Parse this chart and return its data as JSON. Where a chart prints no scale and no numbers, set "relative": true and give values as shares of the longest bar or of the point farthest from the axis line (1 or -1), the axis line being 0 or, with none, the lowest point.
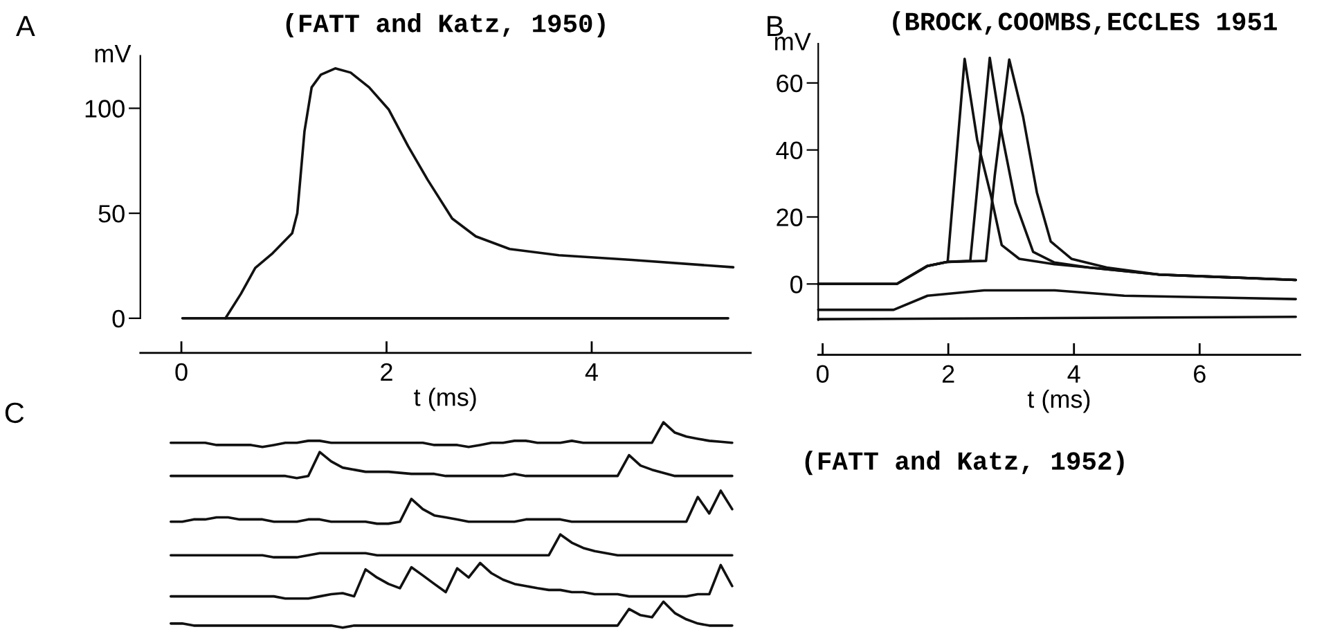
{
  "chart_data": [
    {
      "type": "line",
      "title": "(FATT and Katz, 1950)",
      "ylabel": "mV",
      "xlabel": "t (ms)",
      "annotations": [
        "A"
      ],
      "xlim": [
        -0.4,
        5.55
      ],
      "ylim": [
        0,
        125
      ],
      "xticks": [
        0,
        2,
        4
      ],
      "yticks": [
        0,
        50,
        100
      ],
      "legend": false,
      "marker": "none",
      "line_style": "solid",
      "series": [
        {
          "color": "#111111",
          "x": [
            0.01,
            5.33
          ],
          "values": [
            0,
            0
          ]
        },
        {
          "color": "#111111",
          "x": [
            0.43,
            0.58,
            0.72,
            0.89,
            1.08,
            1.13,
            1.2,
            1.27,
            1.36,
            1.5,
            1.65,
            1.83,
            2.02,
            2.21,
            2.4,
            2.64,
            2.87,
            3.2,
            3.68,
            4.39,
            5.38
          ],
          "values": [
            0,
            11.6,
            24,
            31,
            40.5,
            50,
            89,
            110,
            116,
            119,
            117,
            110,
            99.5,
            82,
            66,
            47.5,
            39,
            33,
            30,
            27.8,
            24.3
          ]
        }
      ]
    },
    {
      "type": "line",
      "title": "(BROCK,COOMBS,ECCLES 1951",
      "ylabel": "mV",
      "xlabel": "t (ms)",
      "annotations": [
        "B"
      ],
      "xlim": [
        -0.07,
        7.6
      ],
      "ylim": [
        -10.8,
        71.7
      ],
      "xticks": [
        0,
        2,
        4,
        6
      ],
      "yticks": [
        0,
        20,
        40,
        60
      ],
      "legend": false,
      "marker": "none",
      "line_style": "solid",
      "series": [
        {
          "color": "#111111",
          "x": [
            -0.07,
            1.18,
            1.67,
            1.99,
            2.26,
            2.46,
            2.68,
            2.85,
            3.13,
            3.69,
            4.24,
            5.36,
            7.53
          ],
          "values": [
            0,
            0,
            5.4,
            6.6,
            67.2,
            43,
            26.3,
            11.6,
            7.5,
            5.9,
            4.9,
            2.8,
            1.2
          ]
        },
        {
          "color": "#111111",
          "x": [
            -0.07,
            1.18,
            1.67,
            1.99,
            2.35,
            2.66,
            2.85,
            3.07,
            3.35,
            3.69,
            4.24,
            5.36,
            7.53
          ],
          "values": [
            0,
            0,
            5.4,
            6.6,
            6.9,
            67.5,
            45,
            24.2,
            9.6,
            6.4,
            4.9,
            2.8,
            1.2
          ]
        },
        {
          "color": "#111111",
          "x": [
            -0.07,
            1.18,
            1.67,
            1.99,
            2.6,
            2.74,
            2.97,
            3.19,
            3.41,
            3.63,
            3.96,
            4.52,
            5.36,
            7.53
          ],
          "values": [
            0,
            0,
            5.4,
            6.6,
            6.9,
            32.5,
            67,
            50,
            27.3,
            12.7,
            7.5,
            4.9,
            2.8,
            1.2
          ]
        },
        {
          "color": "#111111",
          "x": [
            -0.07,
            1.13,
            1.67,
            2.57,
            3.69,
            4.8,
            7.53
          ],
          "values": [
            -7.7,
            -7.7,
            -3.5,
            -1.9,
            -1.9,
            -3.5,
            -4.5
          ]
        },
        {
          "color": "#111111",
          "x": [
            -0.07,
            7.53
          ],
          "values": [
            -10.5,
            -9.8
          ]
        }
      ]
    },
    {
      "type": "line",
      "relative": true,
      "annotations": [
        "C",
        "(FATT and Katz, 1952)"
      ],
      "legend": false,
      "marker": "none",
      "line_style": "solid",
      "tick_labels": false,
      "categories": [
        null,
        null,
        null,
        null,
        null,
        null,
        null,
        null,
        null,
        null,
        null,
        null,
        null,
        null,
        null,
        null,
        null,
        null,
        null,
        null,
        null,
        null,
        null,
        null,
        null,
        null,
        null,
        null,
        null,
        null,
        null,
        null,
        null,
        null,
        null,
        null,
        null,
        null,
        null,
        null,
        null,
        null,
        null,
        null,
        null,
        null,
        null,
        null,
        null,
        null
      ],
      "series": [
        {
          "color": "#111111",
          "values": [
            0.17,
            0.17,
            0.17,
            0.17,
            0.08,
            0.08,
            0.08,
            0.08,
            0,
            0.08,
            0.17,
            0.17,
            0.25,
            0.25,
            0.17,
            0.17,
            0.17,
            0.17,
            0.17,
            0.17,
            0.17,
            0.17,
            0.17,
            0.08,
            0.08,
            0.08,
            0,
            0.08,
            0.17,
            0.17,
            0.25,
            0.25,
            0.17,
            0.17,
            0.17,
            0.25,
            0.17,
            0.17,
            0.17,
            0.17,
            0.17,
            0.17,
            0.17,
            1,
            0.58,
            0.42,
            0.33,
            0.25,
            0.21,
            0.17
          ]
        }
      ]
    },
    {
      "type": "line",
      "relative": true,
      "legend": false,
      "marker": "none",
      "line_style": "solid",
      "tick_labels": false,
      "categories": [
        null,
        null,
        null,
        null,
        null,
        null,
        null,
        null,
        null,
        null,
        null,
        null,
        null,
        null,
        null,
        null,
        null,
        null,
        null,
        null,
        null,
        null,
        null,
        null,
        null,
        null,
        null,
        null,
        null,
        null,
        null,
        null,
        null,
        null,
        null,
        null,
        null,
        null,
        null,
        null,
        null,
        null,
        null,
        null,
        null,
        null,
        null,
        null,
        null,
        null
      ],
      "series": [
        {
          "color": "#111111",
          "values": [
            0.08,
            0.08,
            0.08,
            0.08,
            0.08,
            0.08,
            0.08,
            0.08,
            0.08,
            0.08,
            0.08,
            0,
            0.08,
            1,
            0.64,
            0.4,
            0.32,
            0.24,
            0.24,
            0.24,
            0.2,
            0.16,
            0.16,
            0.16,
            0.08,
            0.08,
            0.08,
            0.08,
            0.08,
            0.08,
            0.16,
            0.08,
            0.08,
            0.08,
            0.08,
            0.08,
            0.08,
            0.08,
            0.08,
            0.08,
            0.88,
            0.48,
            0.32,
            0.2,
            0.08,
            0.08,
            0.08,
            0.08,
            0.08,
            0.08
          ]
        }
      ]
    },
    {
      "type": "line",
      "relative": true,
      "legend": false,
      "marker": "none",
      "line_style": "solid",
      "tick_labels": false,
      "categories": [
        null,
        null,
        null,
        null,
        null,
        null,
        null,
        null,
        null,
        null,
        null,
        null,
        null,
        null,
        null,
        null,
        null,
        null,
        null,
        null,
        null,
        null,
        null,
        null,
        null,
        null,
        null,
        null,
        null,
        null,
        null,
        null,
        null,
        null,
        null,
        null,
        null,
        null,
        null,
        null,
        null,
        null,
        null,
        null,
        null,
        null,
        null,
        null,
        null,
        null
      ],
      "series": [
        {
          "color": "#111111",
          "values": [
            0.06,
            0.06,
            0.13,
            0.13,
            0.19,
            0.19,
            0.13,
            0.13,
            0.13,
            0.06,
            0.06,
            0.06,
            0.13,
            0.13,
            0.06,
            0.06,
            0.06,
            0.06,
            0,
            0,
            0.06,
            0.75,
            0.44,
            0.25,
            0.19,
            0.13,
            0.06,
            0.06,
            0.06,
            0.06,
            0.06,
            0.13,
            0.13,
            0.13,
            0.13,
            0.06,
            0.06,
            0.06,
            0.06,
            0.06,
            0.06,
            0.06,
            0.06,
            0.06,
            0.06,
            0.06,
            0.81,
            0.31,
            1,
            0.44
          ]
        }
      ]
    },
    {
      "type": "line",
      "relative": true,
      "legend": false,
      "marker": "none",
      "line_style": "solid",
      "tick_labels": false,
      "categories": [
        null,
        null,
        null,
        null,
        null,
        null,
        null,
        null,
        null,
        null,
        null,
        null,
        null,
        null,
        null,
        null,
        null,
        null,
        null,
        null,
        null,
        null,
        null,
        null,
        null,
        null,
        null,
        null,
        null,
        null,
        null,
        null,
        null,
        null,
        null,
        null,
        null,
        null,
        null,
        null,
        null,
        null,
        null,
        null,
        null,
        null,
        null,
        null,
        null,
        null
      ],
      "series": [
        {
          "color": "#111111",
          "values": [
            0.09,
            0.09,
            0.09,
            0.09,
            0.09,
            0.09,
            0.09,
            0.09,
            0.09,
            0,
            0,
            0,
            0.09,
            0.18,
            0.18,
            0.18,
            0.18,
            0.18,
            0.09,
            0.09,
            0.09,
            0.09,
            0.09,
            0.09,
            0.09,
            0.09,
            0.09,
            0.09,
            0.09,
            0.09,
            0.09,
            0.09,
            0.09,
            0.09,
            1,
            0.64,
            0.41,
            0.27,
            0.18,
            0.09,
            0.09,
            0.09,
            0.09,
            0.09,
            0.09,
            0.09,
            0.09,
            0.09,
            0.09,
            0.09
          ]
        }
      ]
    },
    {
      "type": "line",
      "relative": true,
      "legend": false,
      "marker": "none",
      "line_style": "solid",
      "tick_labels": false,
      "categories": [
        null,
        null,
        null,
        null,
        null,
        null,
        null,
        null,
        null,
        null,
        null,
        null,
        null,
        null,
        null,
        null,
        null,
        null,
        null,
        null,
        null,
        null,
        null,
        null,
        null,
        null,
        null,
        null,
        null,
        null,
        null,
        null,
        null,
        null,
        null,
        null,
        null,
        null,
        null,
        null,
        null,
        null,
        null,
        null,
        null,
        null,
        null,
        null,
        null,
        null
      ],
      "series": [
        {
          "color": "#111111",
          "values": [
            0.06,
            0.06,
            0.06,
            0.06,
            0.06,
            0.06,
            0.06,
            0.06,
            0.06,
            0.06,
            0,
            0,
            0,
            0.06,
            0.12,
            0.15,
            0.06,
            0.82,
            0.59,
            0.41,
            0.29,
            0.88,
            0.65,
            0.41,
            0.18,
            0.85,
            0.59,
            1,
            0.71,
            0.53,
            0.41,
            0.35,
            0.29,
            0.24,
            0.24,
            0.18,
            0.18,
            0.12,
            0.12,
            0.12,
            0.06,
            0.06,
            0.06,
            0.06,
            0.06,
            0.06,
            0.12,
            0.12,
            0.94,
            0.35
          ]
        }
      ]
    },
    {
      "type": "line",
      "relative": true,
      "legend": false,
      "marker": "none",
      "line_style": "solid",
      "tick_labels": false,
      "categories": [
        null,
        null,
        null,
        null,
        null,
        null,
        null,
        null,
        null,
        null,
        null,
        null,
        null,
        null,
        null,
        null,
        null,
        null,
        null,
        null,
        null,
        null,
        null,
        null,
        null,
        null,
        null,
        null,
        null,
        null,
        null,
        null,
        null,
        null,
        null,
        null,
        null,
        null,
        null,
        null,
        null,
        null,
        null,
        null,
        null,
        null,
        null,
        null,
        null,
        null
      ],
      "series": [
        {
          "color": "#111111",
          "values": [
            0.16,
            0.16,
            0.08,
            0.08,
            0.08,
            0.08,
            0.08,
            0.08,
            0.08,
            0.08,
            0.08,
            0.08,
            0.08,
            0.08,
            0.08,
            0,
            0.08,
            0.08,
            0.08,
            0.08,
            0.08,
            0.08,
            0.08,
            0.08,
            0.08,
            0.08,
            0.08,
            0.08,
            0.08,
            0.08,
            0.08,
            0.08,
            0.08,
            0.08,
            0.08,
            0.08,
            0.08,
            0.08,
            0.08,
            0.08,
            0.72,
            0.48,
            0.4,
            1,
            0.56,
            0.32,
            0.16,
            0.08,
            0.08,
            0.08
          ]
        }
      ]
    }
  ]
}
